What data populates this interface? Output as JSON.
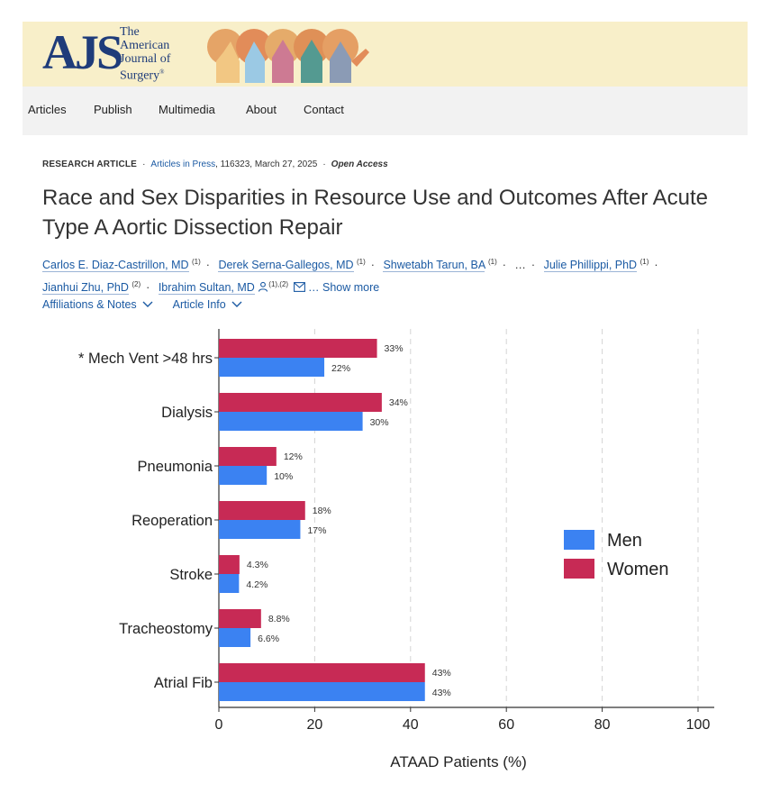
{
  "banner": {
    "logo": "AJS",
    "journal_line1": "The",
    "journal_line2": "American",
    "journal_line3": "Journal of",
    "journal_line4": "Surgery"
  },
  "nav": {
    "items": [
      "Articles",
      "Publish",
      "Multimedia",
      "About",
      "Contact"
    ]
  },
  "meta": {
    "type": "RESEARCH ARTICLE",
    "section": "Articles in Press",
    "details": ", 116323, March 27, 2025",
    "access": "Open Access"
  },
  "article": {
    "title": "Race and Sex Disparities in Resource Use and Outcomes After Acute Type A Aortic Dissection Repair"
  },
  "authors": {
    "list": [
      {
        "name": "Carlos E. Diaz-Castrillon, MD",
        "sup": "(1)"
      },
      {
        "name": "Derek Serna-Gallegos, MD",
        "sup": "(1)"
      },
      {
        "name": "Shwetabh Tarun, BA",
        "sup": "(1)"
      },
      {
        "name": "Julie Phillippi, PhD",
        "sup": "(1)"
      },
      {
        "name": "Jianhui Zhu, PhD",
        "sup": "(2)"
      },
      {
        "name": "Ibrahim Sultan, MD",
        "sup": "(1),(2)"
      }
    ],
    "ellipsis": "…",
    "show_more": "… Show more"
  },
  "info_links": {
    "affiliations": "Affiliations & Notes",
    "article_info": "Article Info"
  },
  "colors": {
    "men": "#3b82f2",
    "women": "#c72a55",
    "link": "#1b5aa3"
  },
  "chart_data": {
    "type": "bar",
    "orientation": "horizontal",
    "categories": [
      "* Mech Vent >48 hrs",
      "Dialysis",
      "Pneumonia",
      "Reoperation",
      "Stroke",
      "Tracheostomy",
      "Atrial Fib"
    ],
    "series": [
      {
        "name": "Women",
        "values": [
          33,
          34,
          12,
          18,
          4.3,
          8.8,
          43
        ],
        "labels": [
          "33%",
          "34%",
          "12%",
          "18%",
          "4.3%",
          "8.8%",
          "43%"
        ]
      },
      {
        "name": "Men",
        "values": [
          22,
          30,
          10,
          17,
          4.2,
          6.6,
          43
        ],
        "labels": [
          "22%",
          "30%",
          "10%",
          "17%",
          "4.2%",
          "6.6%",
          "43%"
        ]
      }
    ],
    "legend": [
      "Men",
      "Women"
    ],
    "legend_position": "right",
    "xlabel": "ATAAD Patients (%)",
    "xlim": [
      0,
      100
    ],
    "xticks": [
      0,
      20,
      40,
      60,
      80,
      100
    ],
    "grid": "vertical dashed"
  }
}
